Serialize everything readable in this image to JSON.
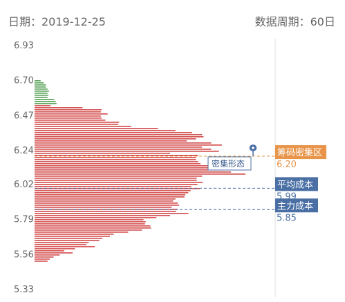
{
  "header": {
    "date": "日期：2019-12-25",
    "period": "数据周期：60日"
  },
  "colors": {
    "profit": "#2f8a2f",
    "loss": "#c81e1e",
    "concentration": "#e8954a",
    "average": "#4a6fa5",
    "main": "#4a6fa5"
  },
  "chart_data": {
    "type": "bar",
    "orientation": "horizontal",
    "title": "",
    "xlabel": "",
    "ylabel": "",
    "ylim": [
      5.31,
      6.94
    ],
    "yticks": [
      "6.93",
      "6.70",
      "6.47",
      "6.24",
      "6.02",
      "5.79",
      "5.56",
      "5.33"
    ],
    "tick_values": [
      6.93,
      6.7,
      6.47,
      6.24,
      6.02,
      5.79,
      5.56,
      5.33
    ],
    "price_start": 6.695,
    "price_step": 0.0136,
    "green_count": 12,
    "values": [
      8,
      12,
      15,
      15,
      17,
      19,
      17,
      18,
      17,
      26,
      28,
      29,
      21,
      63,
      88,
      87,
      96,
      87,
      88,
      93,
      111,
      110,
      127,
      162,
      185,
      207,
      220,
      222,
      212,
      200,
      232,
      246,
      220,
      232,
      242,
      178,
      215,
      212,
      212,
      215,
      218,
      232,
      253,
      247,
      258,
      277,
      220,
      213,
      213,
      221,
      214,
      206,
      217,
      205,
      202,
      198,
      197,
      185,
      182,
      188,
      190,
      180,
      188,
      186,
      202,
      178,
      160,
      143,
      146,
      145,
      152,
      153,
      141,
      123,
      104,
      99,
      89,
      85,
      71,
      68,
      79,
      53,
      39,
      50,
      33,
      25,
      20,
      17
    ],
    "markers": {
      "concentration": {
        "label": "筹码密集区",
        "value": "6.20",
        "price": 6.2
      },
      "average": {
        "label": "平均成本",
        "value": "5.99",
        "price": 5.99
      },
      "main": {
        "label": "主力成本",
        "value": "5.85",
        "price": 5.85
      }
    },
    "annotation": {
      "label": "密集形态"
    }
  }
}
